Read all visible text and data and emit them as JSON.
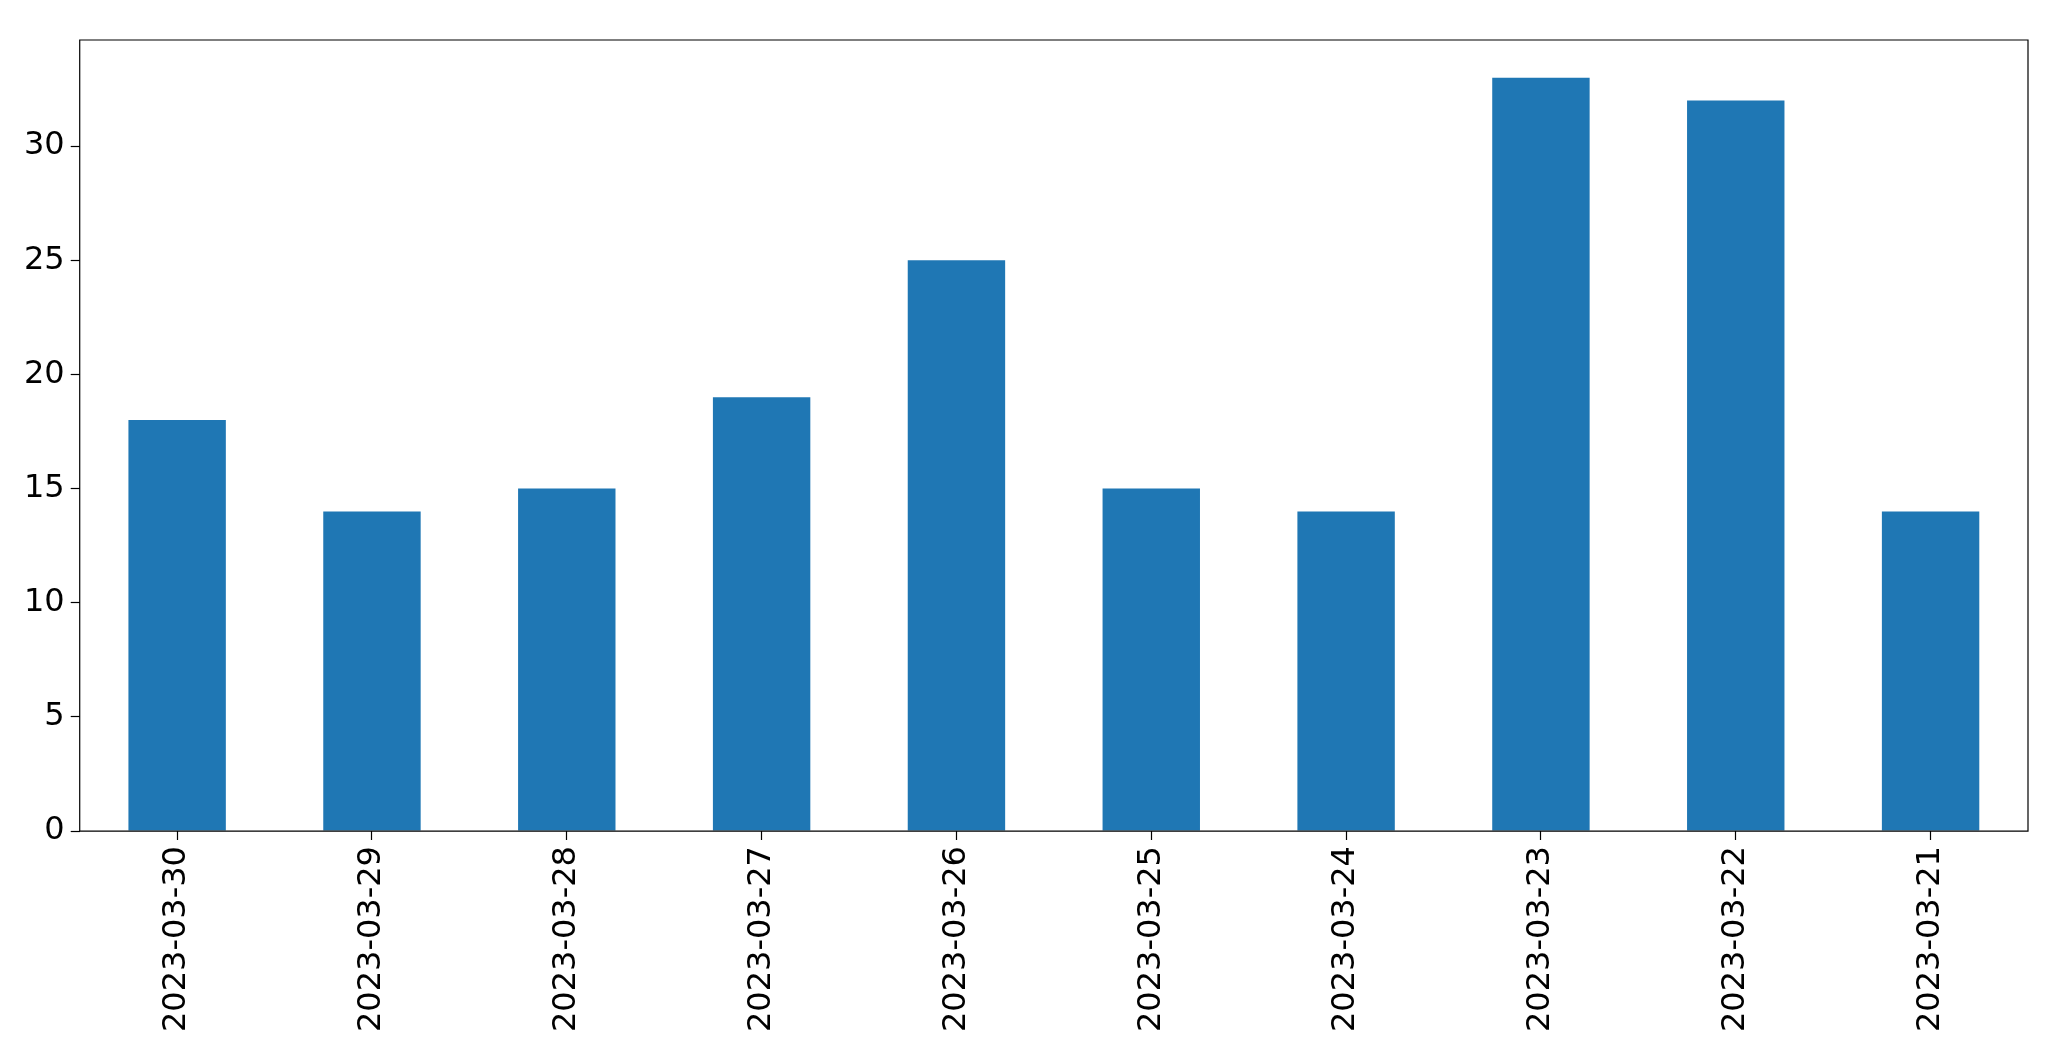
{
  "chart_data": {
    "type": "bar",
    "categories": [
      "2023-03-30",
      "2023-03-29",
      "2023-03-28",
      "2023-03-27",
      "2023-03-26",
      "2023-03-25",
      "2023-03-24",
      "2023-03-23",
      "2023-03-22",
      "2023-03-21"
    ],
    "values": [
      18,
      14,
      15,
      19,
      25,
      15,
      14,
      33,
      32,
      14
    ],
    "color": "#1f77b4",
    "ylim": [
      0,
      34.65
    ],
    "yticks": [
      0,
      5,
      10,
      15,
      20,
      25,
      30
    ]
  }
}
